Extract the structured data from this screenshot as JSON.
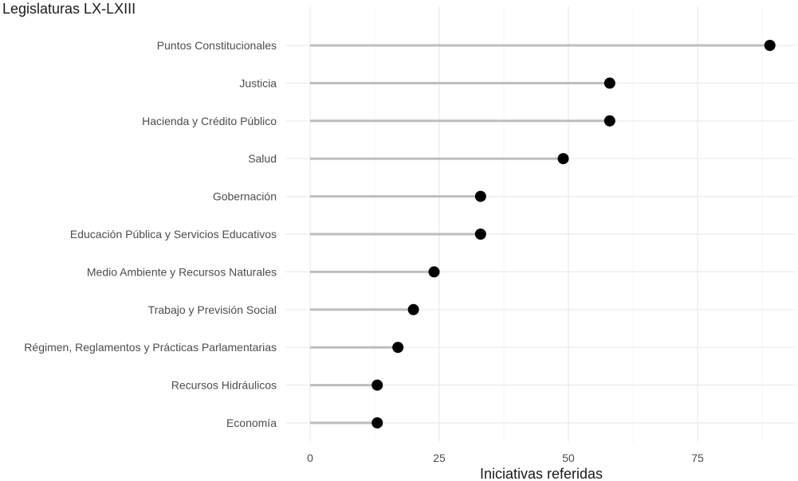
{
  "chart_data": {
    "type": "lollipop",
    "title": "Legislaturas LX-LXIII",
    "xlabel": "Iniciativas referidas",
    "ylabel": "",
    "xlim": [
      0,
      90
    ],
    "x_ticks": [
      0,
      25,
      50,
      75
    ],
    "grid": true,
    "categories": [
      "Puntos Constitucionales",
      "Justicia",
      "Hacienda y Crédito Público",
      "Salud",
      "Gobernación",
      "Educación Pública y Servicios Educativos",
      "Medio Ambiente y Recursos Naturales",
      "Trabajo y Previsión Social",
      "Régimen, Reglamentos y Prácticas Parlamentarias",
      "Recursos Hidráulicos",
      "Economía"
    ],
    "values": [
      89,
      58,
      58,
      49,
      33,
      33,
      24,
      20,
      17,
      13,
      13
    ],
    "colors": {
      "stem": "#bdbdbd",
      "dot": "#000000",
      "grid": "#ebebeb"
    }
  }
}
